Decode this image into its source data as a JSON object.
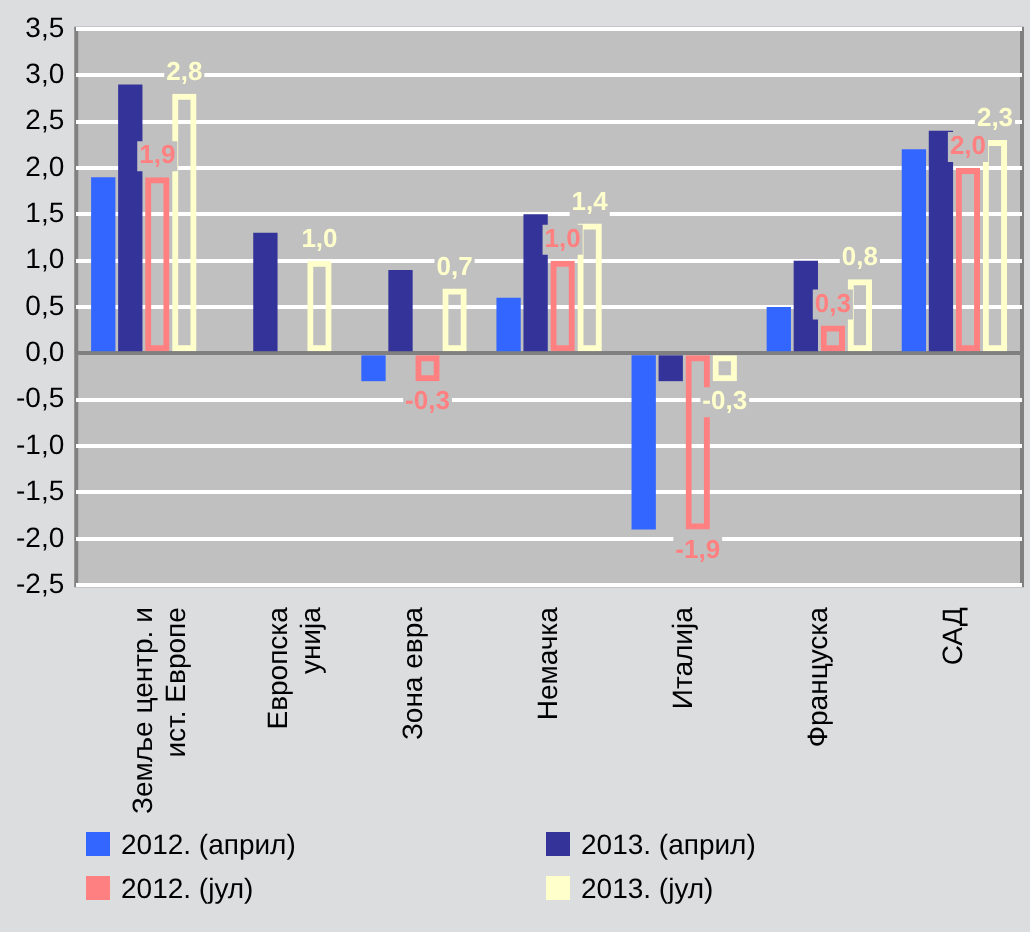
{
  "chart_data": {
    "type": "bar",
    "categories": [
      "Земље центр. и ист. Европе",
      "Европска унија",
      "Зона евра",
      "Немачка",
      "Италија",
      "Француска",
      "САД"
    ],
    "series": [
      {
        "name": "2012. (април)",
        "color": "#3366ff",
        "values": [
          1.9,
          null,
          -0.3,
          0.6,
          -1.9,
          0.5,
          2.2
        ]
      },
      {
        "name": "2013. (април)",
        "color": "#333399",
        "values": [
          2.9,
          1.3,
          0.9,
          1.5,
          -0.3,
          1.0,
          2.4
        ]
      },
      {
        "name": "2012. (јул)",
        "color": "#ff8080",
        "line_style": "dashed",
        "values": [
          1.9,
          null,
          -0.3,
          1.0,
          -1.9,
          0.3,
          2.0
        ],
        "value_labels": [
          "1,9",
          null,
          "-0,3",
          "1,0",
          "-1,9",
          "0,3",
          "2,0"
        ]
      },
      {
        "name": "2013. (јул)",
        "color": "#ffffcc",
        "line_style": "dashed",
        "values": [
          2.8,
          1.0,
          0.7,
          1.4,
          -0.3,
          0.8,
          2.3
        ],
        "value_labels": [
          "2,8",
          "1,0",
          "0,7",
          "1,4",
          "-0,3",
          "0,8",
          "2,3"
        ]
      }
    ],
    "ylim": [
      -2.5,
      3.5
    ],
    "yticks": [
      {
        "value": -2.5,
        "label": "-2,5"
      },
      {
        "value": -2,
        "label": "-2,0"
      },
      {
        "value": -1.5,
        "label": "-1,5"
      },
      {
        "value": -1,
        "label": "-1,0"
      },
      {
        "value": -0.5,
        "label": "-0,5"
      },
      {
        "value": 0,
        "label": "0,0"
      },
      {
        "value": 0.5,
        "label": "0,5"
      },
      {
        "value": 1,
        "label": "1,0"
      },
      {
        "value": 1.5,
        "label": "1,5"
      },
      {
        "value": 2,
        "label": "2,0"
      },
      {
        "value": 2.5,
        "label": "2,5"
      },
      {
        "value": 3,
        "label": "3,0"
      },
      {
        "value": 3.5,
        "label": "3,5"
      }
    ],
    "grid": "y",
    "legend": "bottom"
  }
}
